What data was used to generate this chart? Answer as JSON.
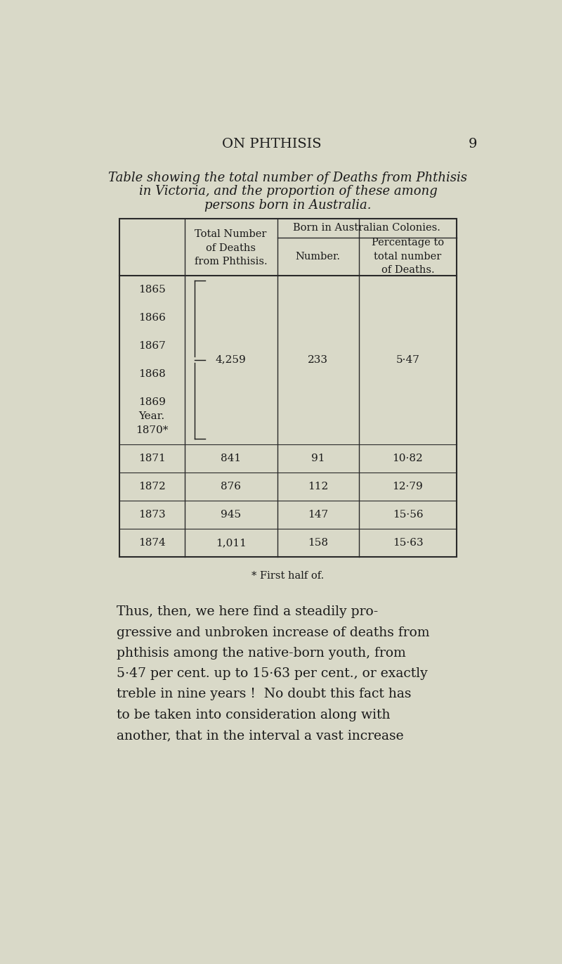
{
  "page_header": "ON PHTHISIS",
  "page_number": "9",
  "table_caption_line1": "Table showing the total number of Deaths from Phthisis",
  "table_caption_line2": "in Victoria, and the proportion of these among",
  "table_caption_line3": "persons born in Australia.",
  "col_header_year": "Year.",
  "col_header_total": "Total Number\nof Deaths\nfrom Phthisis.",
  "col_header_born_top": "Born in Australian Colonies.",
  "col_header_number": "Number.",
  "col_header_pct": "Percentage to\ntotal number\nof Deaths.",
  "grouped_years": [
    "1865",
    "1866",
    "1867",
    "1868",
    "1869",
    "1870*"
  ],
  "grouped_total": "4,259",
  "grouped_number": "233",
  "grouped_pct": "5·47",
  "individual_rows": [
    {
      "year": "1871",
      "total": "841",
      "number": "91",
      "pct": "10·82"
    },
    {
      "year": "1872",
      "total": "876",
      "number": "112",
      "pct": "12·79"
    },
    {
      "year": "1873",
      "total": "945",
      "number": "147",
      "pct": "15·56"
    },
    {
      "year": "1874",
      "total": "1,011",
      "number": "158",
      "pct": "15·63"
    }
  ],
  "footnote": "* First half of.",
  "paragraph": "Thus, then, we here find a steadily pro-\ngressive and unbroken increase of deaths from\nphthisis among the native-born youth, from\n5·47 per cent. up to 15·63 per cent., or exactly\ntreble in nine years !  No doubt this fact has\nto be taken into consideration along with\nanother, that in the interval a vast increase",
  "bg_color": "#d9d9c8",
  "text_color": "#1a1a1a",
  "line_color": "#2a2a2a"
}
